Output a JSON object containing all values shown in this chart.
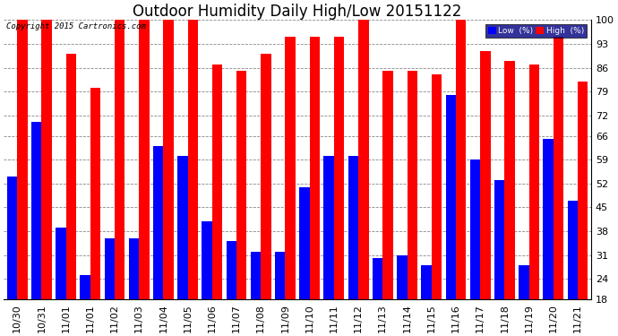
{
  "title": "Outdoor Humidity Daily High/Low 20151122",
  "copyright": "Copyright 2015 Cartronics.com",
  "categories": [
    "10/30",
    "10/31",
    "11/01",
    "11/01",
    "11/02",
    "11/03",
    "11/04",
    "11/05",
    "11/06",
    "11/07",
    "11/08",
    "11/09",
    "11/10",
    "11/11",
    "11/12",
    "11/13",
    "11/14",
    "11/15",
    "11/16",
    "11/17",
    "11/18",
    "11/19",
    "11/20",
    "11/21"
  ],
  "high_values": [
    100,
    100,
    90,
    80,
    100,
    100,
    100,
    100,
    87,
    85,
    90,
    95,
    95,
    95,
    100,
    85,
    85,
    84,
    100,
    91,
    88,
    87,
    95,
    82
  ],
  "low_values": [
    54,
    70,
    39,
    25,
    36,
    36,
    63,
    60,
    41,
    35,
    32,
    32,
    51,
    60,
    60,
    30,
    31,
    28,
    78,
    59,
    53,
    28,
    65,
    47
  ],
  "high_color": "#FF0000",
  "low_color": "#0000FF",
  "bg_color": "#FFFFFF",
  "grid_color": "#888888",
  "yticks": [
    18,
    24,
    31,
    38,
    45,
    52,
    59,
    66,
    72,
    79,
    86,
    93,
    100
  ],
  "ylim": [
    18,
    100
  ],
  "title_fontsize": 12,
  "tick_fontsize": 8
}
